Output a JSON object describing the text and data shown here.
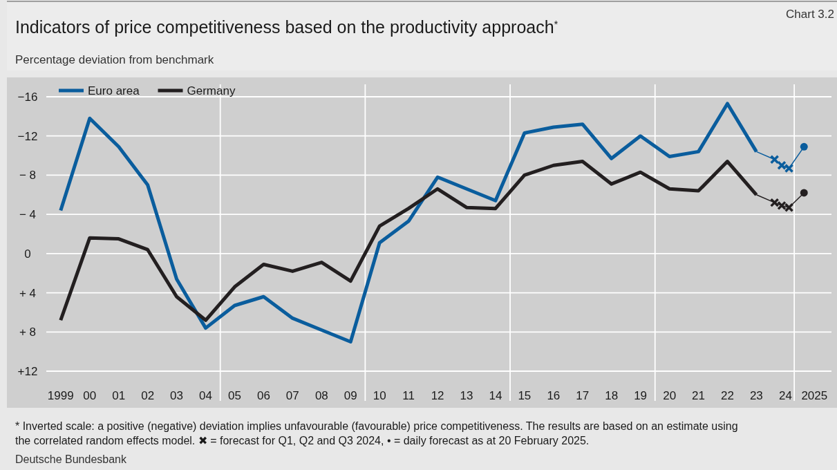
{
  "chart_data": {
    "type": "line",
    "title": "Indicators of price competitiveness based on the productivity approach$^{*}$",
    "subtitle": "Percentage deviation from benchmark",
    "annotations": [
      "Chart 3.2",
      "* Inverted scale: a positive (negative) deviation implies unfavourable (favourable) price competitiveness. The results are based on an estimate using the correlated random effects model. ✖ = forecast for Q1, Q2 and Q3 2024, • = daily forecast as at 20 February 2025.",
      "Deutsche Bundesbank"
    ],
    "xlim": [
      "1999-01-01",
      "2026-02-01"
    ],
    "xticks": [
      {
        "value": "1999-07-01",
        "label": "1999"
      },
      {
        "value": "2000-07-01",
        "label": "00"
      },
      {
        "value": "2001-07-01",
        "label": "01"
      },
      {
        "value": "2002-07-01",
        "label": "02"
      },
      {
        "value": "2003-07-01",
        "label": "03"
      },
      {
        "value": "2004-07-01",
        "label": "04"
      },
      {
        "value": "2005-07-01",
        "label": "05"
      },
      {
        "value": "2006-07-01",
        "label": "06"
      },
      {
        "value": "2007-07-01",
        "label": "07"
      },
      {
        "value": "2008-07-01",
        "label": "08"
      },
      {
        "value": "2009-07-01",
        "label": "09"
      },
      {
        "value": "2010-07-01",
        "label": "10"
      },
      {
        "value": "2011-07-01",
        "label": "11"
      },
      {
        "value": "2012-07-01",
        "label": "12"
      },
      {
        "value": "2013-07-01",
        "label": "13"
      },
      {
        "value": "2014-07-01",
        "label": "14"
      },
      {
        "value": "2015-07-01",
        "label": "15"
      },
      {
        "value": "2016-07-01",
        "label": "16"
      },
      {
        "value": "2017-07-01",
        "label": "17"
      },
      {
        "value": "2018-07-01",
        "label": "18"
      },
      {
        "value": "2019-07-01",
        "label": "19"
      },
      {
        "value": "2020-07-01",
        "label": "20"
      },
      {
        "value": "2021-07-01",
        "label": "21"
      },
      {
        "value": "2022-07-01",
        "label": "22"
      },
      {
        "value": "2023-07-01",
        "label": "23"
      },
      {
        "value": "2024-07-01",
        "label": "24"
      },
      {
        "value": "2025-07-01",
        "label": "2025"
      }
    ],
    "ylim": [
      12,
      -16
    ],
    "yticks": [
      {
        "value": -16,
        "label": "−16"
      },
      {
        "value": -12,
        "label": "−12"
      },
      {
        "value": -8,
        "label": "− 8"
      },
      {
        "value": -4,
        "label": "− 4"
      },
      0,
      {
        "value": 4,
        "label": "+ 4"
      },
      {
        "value": 8,
        "label": "+ 8"
      },
      {
        "value": 12,
        "label": "+12"
      }
    ],
    "grid": "y",
    "legend": "top left",
    "line_style": "solid",
    "ref_lines": [
      {
        "axis": "x",
        "value": "2005-01-01",
        "color": "#ffffff"
      },
      {
        "axis": "x",
        "value": "2010-01-01",
        "color": "#ffffff"
      },
      {
        "axis": "x",
        "value": "2015-01-01",
        "color": "#ffffff"
      },
      {
        "axis": "x",
        "value": "2020-01-01",
        "color": "#ffffff"
      },
      {
        "axis": "x",
        "value": "2024-10-20",
        "color": "#ffffff"
      }
    ],
    "series": [
      {
        "name": "Euro area",
        "color": "#0a5d9d",
        "x": [
          "1999-07-01",
          "2000-07-01",
          "2001-07-01",
          "2002-07-01",
          "2003-07-01",
          "2004-07-01",
          "2005-07-01",
          "2006-07-01",
          "2007-07-01",
          "2008-07-01",
          "2009-07-01",
          "2010-07-01",
          "2011-07-01",
          "2012-07-01",
          "2013-07-01",
          "2014-07-01",
          "2015-07-01",
          "2016-07-01",
          "2017-07-01",
          "2018-07-01",
          "2019-07-01",
          "2020-07-01",
          "2021-07-01",
          "2022-07-01",
          "2023-07-01"
        ],
        "values": [
          -4.4,
          -13.8,
          -10.9,
          -7.0,
          2.6,
          7.6,
          5.3,
          4.4,
          6.6,
          7.8,
          9.0,
          -1.1,
          -3.3,
          -7.8,
          -6.6,
          -5.4,
          -12.3,
          -12.9,
          -13.2,
          -9.7,
          -12.0,
          -9.9,
          -10.4,
          -15.3,
          -10.4
        ]
      },
      {
        "name": "Germany",
        "color": "#231f20",
        "x": [
          "1999-07-01",
          "2000-07-01",
          "2001-07-01",
          "2002-07-01",
          "2003-07-01",
          "2004-07-01",
          "2005-07-01",
          "2006-07-01",
          "2007-07-01",
          "2008-07-01",
          "2009-07-01",
          "2010-07-01",
          "2011-07-01",
          "2012-07-01",
          "2013-07-01",
          "2014-07-01",
          "2015-07-01",
          "2016-07-01",
          "2017-07-01",
          "2018-07-01",
          "2019-07-01",
          "2020-07-01",
          "2021-07-01",
          "2022-07-01",
          "2023-07-01"
        ],
        "values": [
          6.8,
          -1.6,
          -1.5,
          -0.4,
          4.4,
          6.8,
          3.4,
          1.1,
          1.8,
          0.9,
          2.8,
          -2.8,
          -4.6,
          -6.6,
          -4.7,
          -4.6,
          -8.0,
          -9.0,
          -9.4,
          -7.1,
          -8.3,
          -6.6,
          -6.4,
          -9.4,
          -6.0
        ]
      },
      {
        "color": "#0a5d9d",
        "marker": "none",
        "x": [
          "2023-07-01",
          "2024-02-15",
          "2024-05-15",
          "2024-08-15",
          "2025-02-20"
        ],
        "values": [
          -10.4,
          -9.6,
          -9.0,
          -8.7,
          -10.9
        ]
      },
      {
        "color": "#231f20",
        "marker": "none",
        "x": [
          "2023-07-01",
          "2024-02-15",
          "2024-05-15",
          "2024-08-15",
          "2025-02-20"
        ],
        "values": [
          -6.0,
          -5.2,
          -4.9,
          -4.7,
          -6.2
        ]
      },
      {
        "color": "#0a5d9d",
        "type": "scatter",
        "marker": "cross",
        "x": [
          "2024-02-15",
          "2024-05-15",
          "2024-08-15"
        ],
        "values": [
          -9.6,
          -9.0,
          -8.7
        ]
      },
      {
        "color": "#231f20",
        "type": "scatter",
        "marker": "cross",
        "x": [
          "2024-02-15",
          "2024-05-15",
          "2024-08-15"
        ],
        "values": [
          -5.2,
          -4.9,
          -4.7
        ]
      },
      {
        "color": "#0a5d9d",
        "type": "scatter",
        "marker": "circle",
        "x": [
          "2025-02-20"
        ],
        "values": [
          -10.9
        ]
      },
      {
        "color": "#231f20",
        "type": "scatter",
        "marker": "circle",
        "x": [
          "2025-02-20"
        ],
        "values": [
          -6.2
        ]
      }
    ]
  }
}
